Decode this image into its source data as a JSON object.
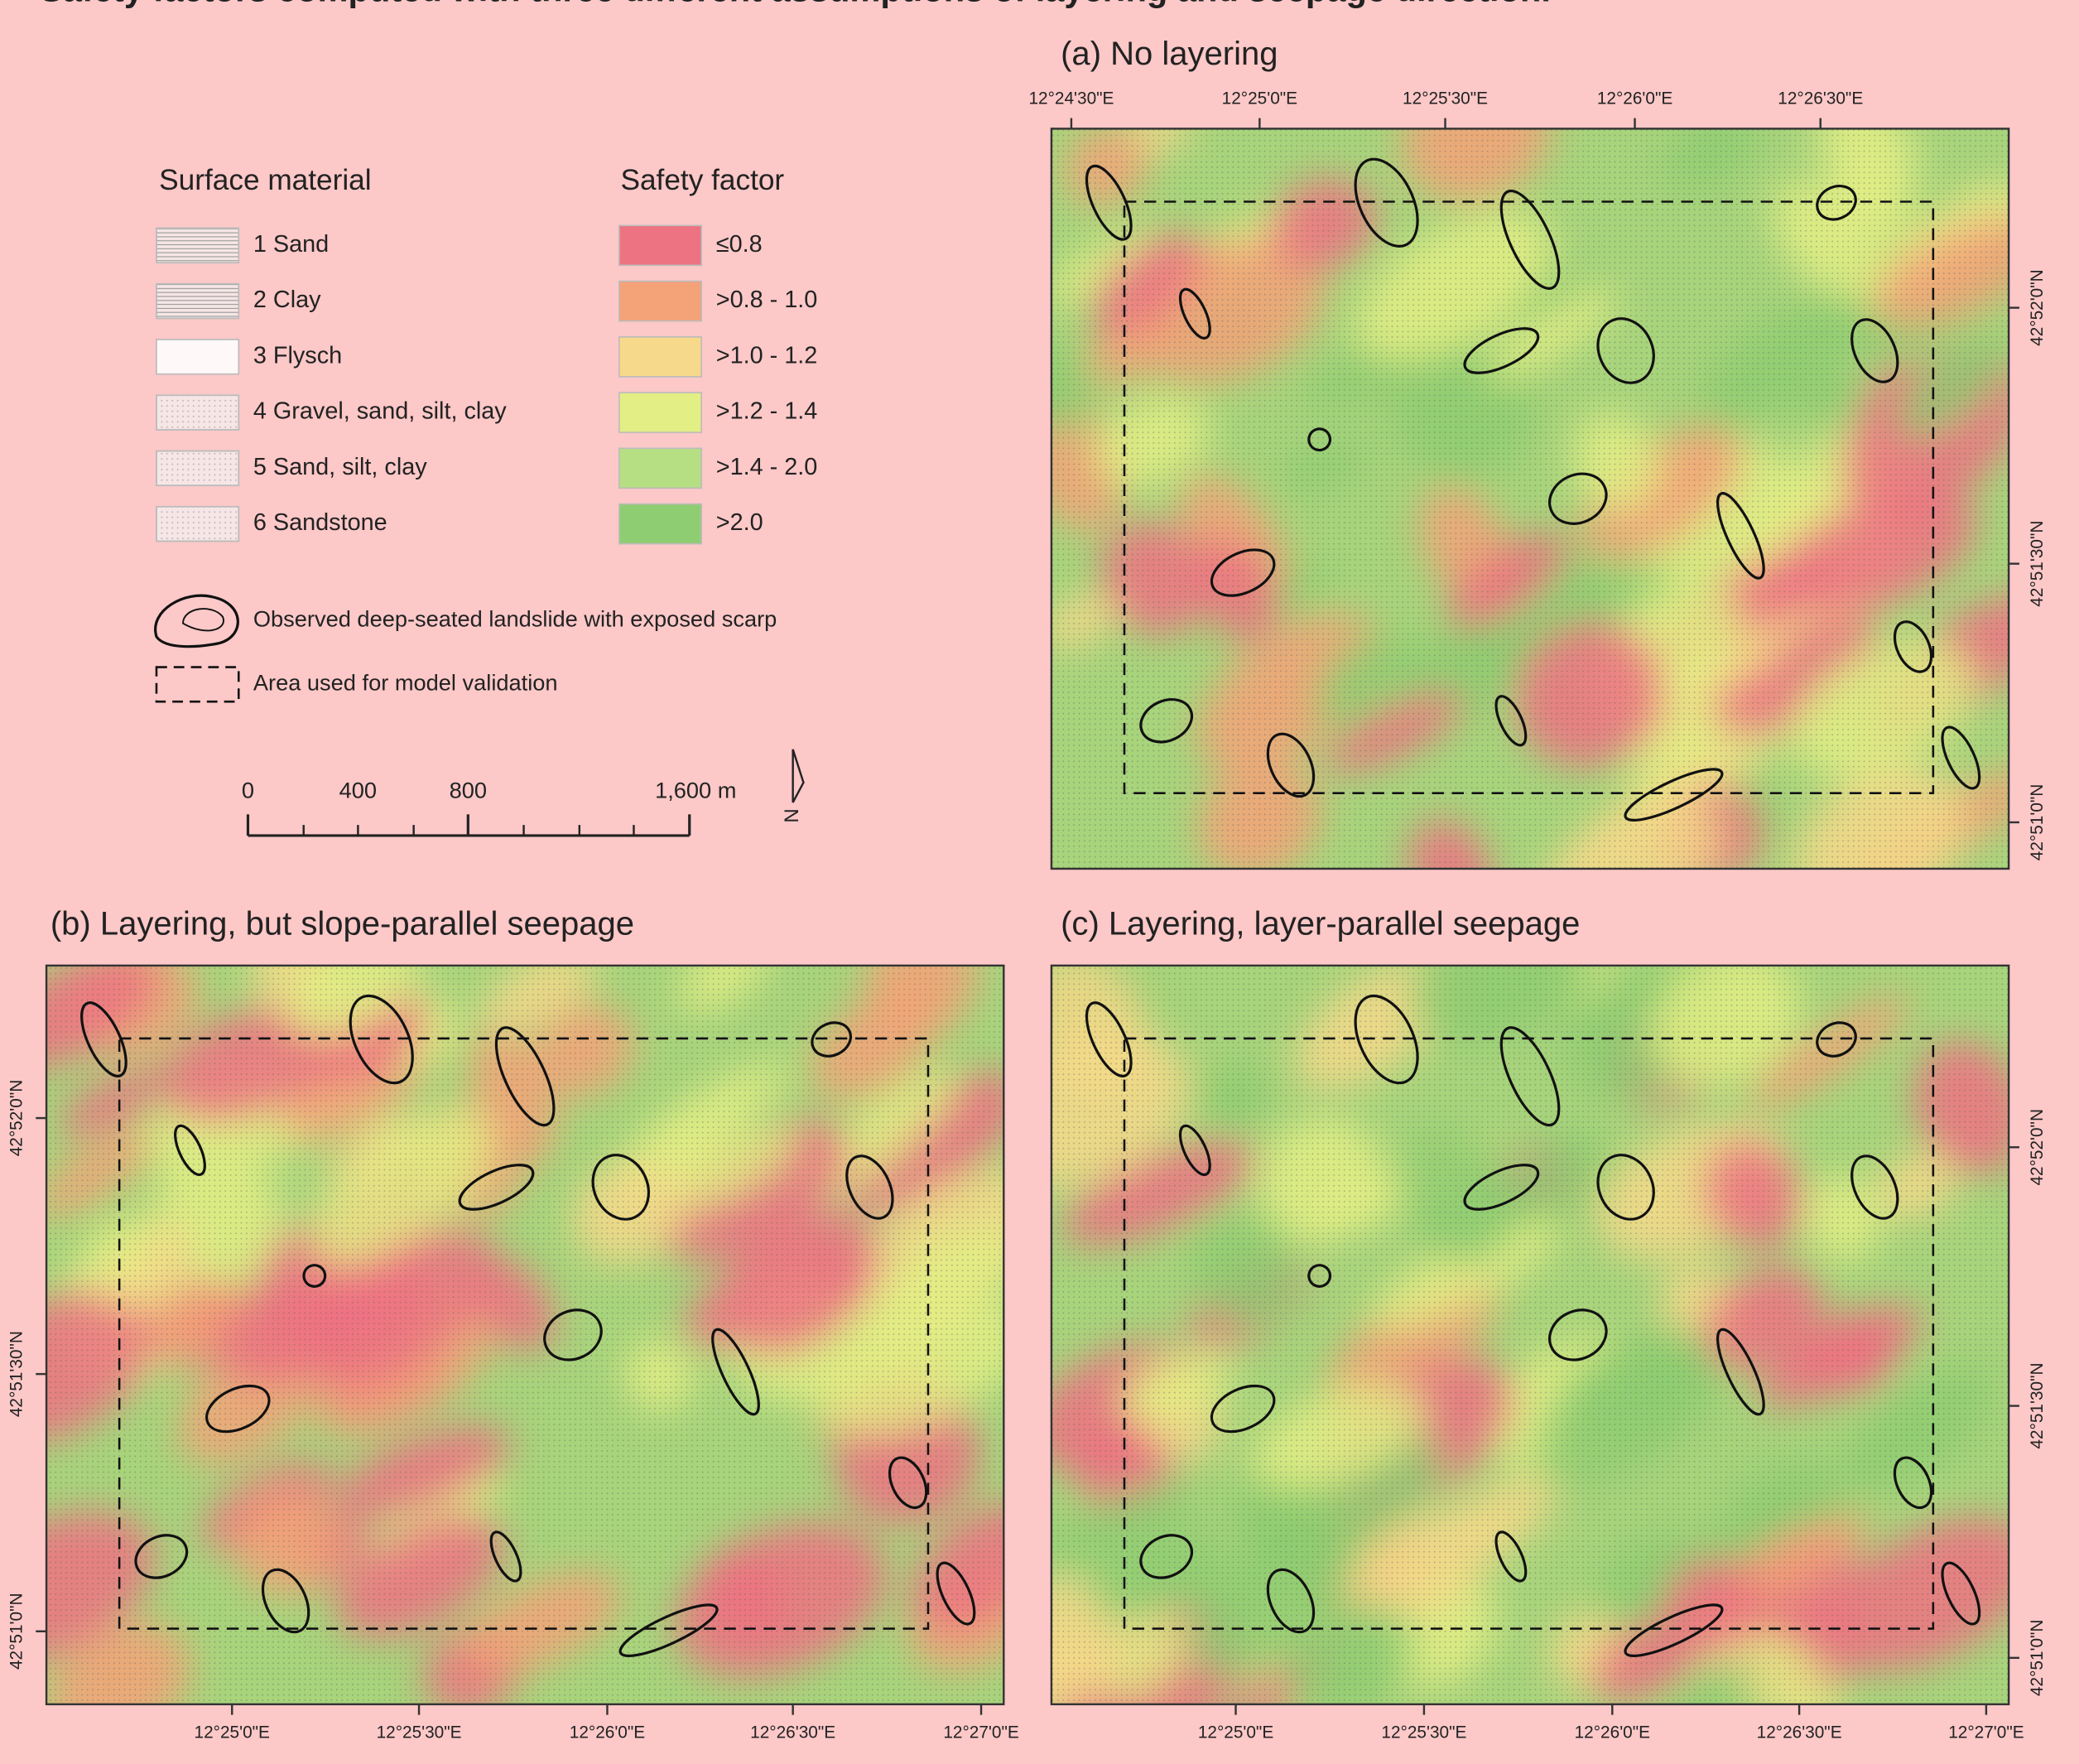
{
  "title": "Safety factors computed with three different assumptions of layering and seepage direction.",
  "legend": {
    "surface_material": {
      "title": "Surface material",
      "items": [
        "1 Sand",
        "2 Clay",
        "3 Flysch",
        "4 Gravel, sand, silt, clay",
        "5 Sand, silt, clay",
        "6 Sandstone"
      ]
    },
    "safety_factor": {
      "title": "Safety factor",
      "items": [
        "≤0.8",
        ">0.8 - 1.0",
        ">1.0 - 1.2",
        ">1.2 - 1.4",
        ">1.4 - 2.0",
        ">2.0"
      ],
      "colors": [
        "#ee7382",
        "#f4a278",
        "#f6d98a",
        "#e3ee85",
        "#b6df83",
        "#8fcd72"
      ]
    },
    "landslide": "Observed deep-seated landslide with exposed scarp",
    "validation_area": "Area used for model validation"
  },
  "scale_bar": {
    "labels": [
      "0",
      "400",
      "800",
      "1,600 m"
    ]
  },
  "north": "N",
  "panels": [
    {
      "title": "(a) No layering",
      "x_ticks": [
        "12°24'30\"E",
        "12°25'0\"E",
        "12°25'30\"E",
        "12°26'0\"E",
        "12°26'30\"E"
      ],
      "y_ticks": [
        "42°52'0\"N",
        "42°51'30\"N",
        "42°51'0\"N"
      ]
    },
    {
      "title": "(b) Layering, but slope-parallel seepage",
      "x_ticks": [
        "12°25'0\"E",
        "12°25'30\"E",
        "12°26'0\"E",
        "12°26'30\"E",
        "12°27'0\"E"
      ],
      "y_ticks": [
        "42°52'0\"N",
        "42°51'30\"N",
        "42°51'0\"N"
      ]
    },
    {
      "title": "(c) Layering, layer-parallel seepage",
      "x_ticks": [
        "12°25'0\"E",
        "12°25'30\"E",
        "12°26'0\"E",
        "12°26'30\"E",
        "12°27'0\"E"
      ],
      "y_ticks": [
        "42°52'0\"N",
        "42°51'30\"N",
        "42°51'0\"N"
      ]
    }
  ]
}
